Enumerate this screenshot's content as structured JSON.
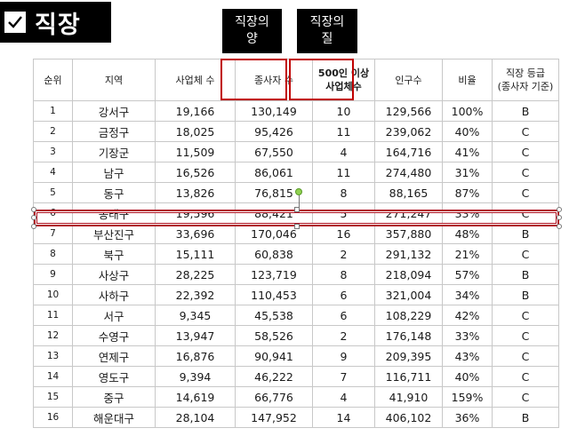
{
  "title": "직장",
  "tags": [
    "직장의\n양",
    "직장의\n질"
  ],
  "table": {
    "headers": [
      "순위",
      "지역",
      "사업체 수",
      "종사자 수",
      "500인 이상\n사업체수",
      "인구수",
      "비율",
      "직장 등급\n(종사자 기준)"
    ],
    "rows": [
      [
        "1",
        "강서구",
        "19,166",
        "130,149",
        "10",
        "129,566",
        "100%",
        "B"
      ],
      [
        "2",
        "금정구",
        "18,025",
        "95,426",
        "11",
        "239,062",
        "40%",
        "C"
      ],
      [
        "3",
        "기장군",
        "11,509",
        "67,550",
        "4",
        "164,716",
        "41%",
        "C"
      ],
      [
        "4",
        "남구",
        "16,526",
        "86,061",
        "11",
        "274,480",
        "31%",
        "C"
      ],
      [
        "5",
        "동구",
        "13,826",
        "76,815",
        "8",
        "88,165",
        "87%",
        "C"
      ],
      [
        "6",
        "동래구",
        "19,596",
        "88,421",
        "5",
        "271,247",
        "33%",
        "C"
      ],
      [
        "7",
        "부산진구",
        "33,696",
        "170,046",
        "16",
        "357,880",
        "48%",
        "B"
      ],
      [
        "8",
        "북구",
        "15,111",
        "60,838",
        "2",
        "291,132",
        "21%",
        "C"
      ],
      [
        "9",
        "사상구",
        "28,225",
        "123,719",
        "8",
        "218,094",
        "57%",
        "B"
      ],
      [
        "10",
        "사하구",
        "22,392",
        "110,453",
        "6",
        "321,004",
        "34%",
        "B"
      ],
      [
        "11",
        "서구",
        "9,345",
        "45,538",
        "6",
        "108,229",
        "42%",
        "C"
      ],
      [
        "12",
        "수영구",
        "13,947",
        "58,526",
        "2",
        "176,148",
        "33%",
        "C"
      ],
      [
        "13",
        "연제구",
        "16,876",
        "90,941",
        "9",
        "209,395",
        "43%",
        "C"
      ],
      [
        "14",
        "영도구",
        "9,394",
        "46,222",
        "7",
        "116,711",
        "40%",
        "C"
      ],
      [
        "15",
        "중구",
        "14,619",
        "66,776",
        "4",
        "41,910",
        "159%",
        "C"
      ],
      [
        "16",
        "해운대구",
        "28,104",
        "147,952",
        "14",
        "406,102",
        "36%",
        "B"
      ]
    ]
  },
  "highlight_row": 6,
  "colors": {
    "highlight": "#c00000",
    "header_bg": "#000000"
  }
}
